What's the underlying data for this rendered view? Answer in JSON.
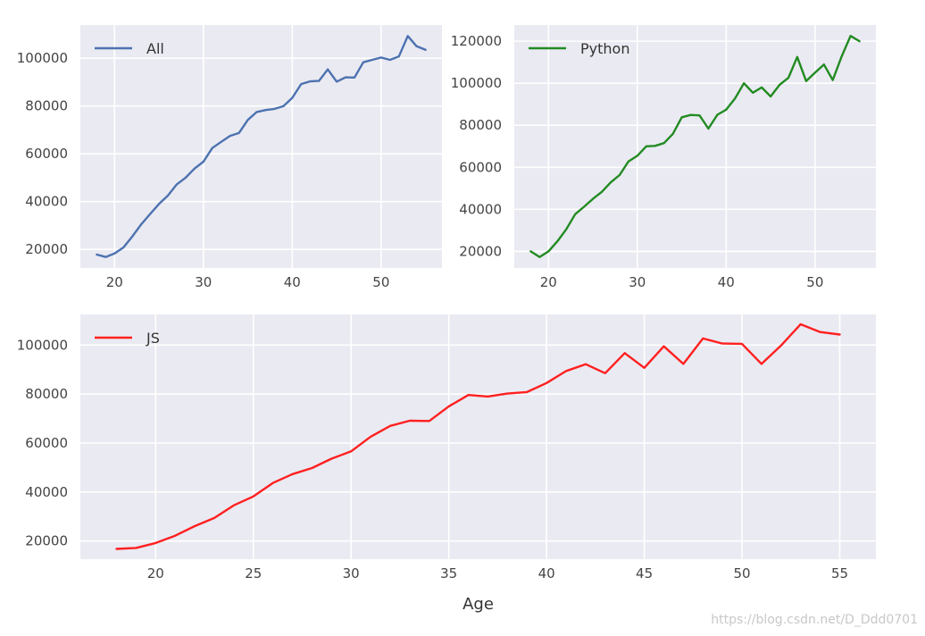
{
  "chart_data": [
    {
      "type": "line",
      "x": [
        18,
        19,
        20,
        21,
        22,
        23,
        24,
        25,
        26,
        27,
        28,
        29,
        30,
        31,
        32,
        33,
        34,
        35,
        36,
        37,
        38,
        39,
        40,
        41,
        42,
        43,
        44,
        45,
        46,
        47,
        48,
        49,
        50,
        51,
        52,
        53,
        54,
        55
      ],
      "series": [
        {
          "name": "All",
          "color": "#4c72b0",
          "values": [
            17800,
            16800,
            18300,
            20800,
            25400,
            30500,
            34800,
            39000,
            42500,
            47200,
            50000,
            53800,
            56700,
            62400,
            65000,
            67500,
            68700,
            74200,
            77500,
            78300,
            78800,
            79900,
            83400,
            89200,
            90300,
            90500,
            95300,
            90200,
            92000,
            91900,
            98300,
            99300,
            100300,
            99300,
            100700,
            109300,
            105000,
            103500
          ]
        }
      ],
      "xticks": [
        "20",
        "30",
        "40",
        "50"
      ],
      "yticks": [
        "20000",
        "40000",
        "60000",
        "80000",
        "100000"
      ],
      "xlim": [
        16.15,
        56.85
      ],
      "ylim": [
        12200,
        113900
      ],
      "legend": "top-left",
      "grid": true
    },
    {
      "type": "line",
      "x": [
        18,
        19,
        20,
        21,
        22,
        23,
        24,
        25,
        26,
        27,
        28,
        29,
        30,
        31,
        32,
        33,
        34,
        35,
        36,
        37,
        38,
        39,
        40,
        41,
        42,
        43,
        44,
        45,
        46,
        47,
        48,
        49,
        50,
        51,
        52,
        53,
        54,
        55
      ],
      "series": [
        {
          "name": "Python",
          "color": "#228b22",
          "values": [
            20000,
            17300,
            20000,
            24800,
            30500,
            37700,
            41200,
            45000,
            48300,
            52800,
            56300,
            62800,
            65500,
            70000,
            70200,
            71500,
            75900,
            83800,
            84900,
            84700,
            78400,
            85000,
            87400,
            92800,
            100000,
            95500,
            98000,
            93700,
            99200,
            102600,
            112500,
            101000,
            105000,
            108900,
            101500,
            112800,
            122500,
            120000
          ]
        }
      ],
      "xticks": [
        "20",
        "30",
        "40",
        "50"
      ],
      "yticks": [
        "20000",
        "40000",
        "60000",
        "80000",
        "100000",
        "120000"
      ],
      "xlim": [
        16.15,
        56.85
      ],
      "ylim": [
        12100,
        127700
      ],
      "legend": "top-left",
      "grid": true
    },
    {
      "type": "line",
      "x": [
        18,
        19,
        20,
        21,
        22,
        23,
        24,
        25,
        26,
        27,
        28,
        29,
        30,
        31,
        32,
        33,
        34,
        35,
        36,
        37,
        38,
        39,
        40,
        41,
        42,
        43,
        44,
        45,
        46,
        47,
        48,
        49,
        50,
        51,
        52,
        53,
        54,
        55
      ],
      "series": [
        {
          "name": "JS",
          "color": "#ff2020",
          "values": [
            16800,
            17200,
            19200,
            22200,
            26100,
            29400,
            34600,
            38200,
            43700,
            47300,
            49800,
            53600,
            56600,
            62600,
            67000,
            69100,
            69000,
            75000,
            79600,
            79000,
            80200,
            80800,
            84500,
            89400,
            92200,
            88500,
            96700,
            90700,
            99500,
            92300,
            102700,
            100600,
            100500,
            92300,
            99800,
            108500,
            105300,
            104300
          ]
        }
      ],
      "xticks": [
        "20",
        "25",
        "30",
        "35",
        "40",
        "45",
        "50",
        "55"
      ],
      "yticks": [
        "20000",
        "40000",
        "60000",
        "80000",
        "100000"
      ],
      "xlabel": "Age",
      "xlim": [
        16.15,
        56.85
      ],
      "ylim": [
        12600,
        112500
      ],
      "legend": "top-left",
      "grid": true
    }
  ],
  "watermark": "https://blog.csdn.net/D_Ddd0701"
}
